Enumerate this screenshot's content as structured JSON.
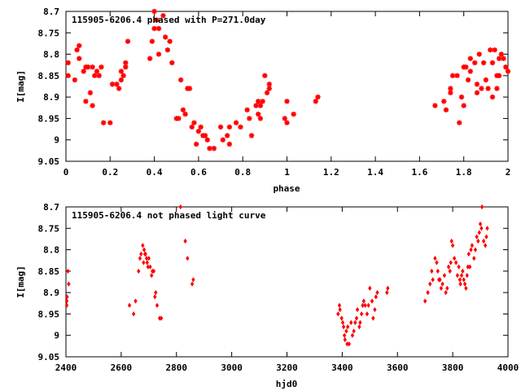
{
  "chart_data": [
    {
      "type": "scatter",
      "title": "115905-6206.4 phased with P=271.0day",
      "xlabel": "phase",
      "ylabel": "I[mag]",
      "xlim": [
        0,
        2
      ],
      "ylim": [
        9.05,
        8.7
      ],
      "y_inverted": true,
      "grid": false,
      "color": "#ff0000",
      "marker": "cross",
      "x_ticks": [
        "0",
        "0.2",
        "0.4",
        "0.6",
        "0.8",
        "1",
        "1.2",
        "1.4",
        "1.6",
        "1.8",
        "2"
      ],
      "y_ticks": [
        "8.7",
        "8.75",
        "8.8",
        "8.85",
        "8.9",
        "8.95",
        "9",
        "9.05"
      ],
      "points": [
        [
          0.01,
          8.82
        ],
        [
          0.01,
          8.85
        ],
        [
          0.04,
          8.86
        ],
        [
          0.05,
          8.79
        ],
        [
          0.06,
          8.78
        ],
        [
          0.06,
          8.81
        ],
        [
          0.08,
          8.84
        ],
        [
          0.09,
          8.83
        ],
        [
          0.09,
          8.91
        ],
        [
          0.1,
          8.83
        ],
        [
          0.11,
          8.89
        ],
        [
          0.12,
          8.92
        ],
        [
          0.12,
          8.83
        ],
        [
          0.13,
          8.85
        ],
        [
          0.14,
          8.84
        ],
        [
          0.15,
          8.85
        ],
        [
          0.16,
          8.83
        ],
        [
          0.17,
          8.96
        ],
        [
          0.2,
          8.96
        ],
        [
          0.21,
          8.87
        ],
        [
          0.23,
          8.87
        ],
        [
          0.24,
          8.88
        ],
        [
          0.25,
          8.84
        ],
        [
          0.25,
          8.86
        ],
        [
          0.26,
          8.85
        ],
        [
          0.27,
          8.82
        ],
        [
          0.27,
          8.83
        ],
        [
          0.28,
          8.77
        ],
        [
          0.38,
          8.81
        ],
        [
          0.39,
          8.77
        ],
        [
          0.4,
          8.7
        ],
        [
          0.4,
          8.74
        ],
        [
          0.41,
          8.72
        ],
        [
          0.42,
          8.74
        ],
        [
          0.42,
          8.8
        ],
        [
          0.44,
          8.71
        ],
        [
          0.45,
          8.76
        ],
        [
          0.46,
          8.79
        ],
        [
          0.47,
          8.77
        ],
        [
          0.48,
          8.82
        ],
        [
          0.5,
          8.95
        ],
        [
          0.51,
          8.95
        ],
        [
          0.52,
          8.86
        ],
        [
          0.53,
          8.93
        ],
        [
          0.54,
          8.94
        ],
        [
          0.55,
          8.88
        ],
        [
          0.56,
          8.88
        ],
        [
          0.57,
          8.97
        ],
        [
          0.58,
          8.96
        ],
        [
          0.59,
          9.01
        ],
        [
          0.6,
          8.98
        ],
        [
          0.61,
          8.97
        ],
        [
          0.62,
          8.99
        ],
        [
          0.63,
          8.99
        ],
        [
          0.64,
          9.0
        ],
        [
          0.65,
          9.02
        ],
        [
          0.67,
          9.02
        ],
        [
          0.7,
          8.97
        ],
        [
          0.71,
          9.0
        ],
        [
          0.73,
          8.99
        ],
        [
          0.74,
          8.97
        ],
        [
          0.74,
          9.01
        ],
        [
          0.77,
          8.96
        ],
        [
          0.79,
          8.97
        ],
        [
          0.82,
          8.93
        ],
        [
          0.83,
          8.95
        ],
        [
          0.84,
          8.99
        ],
        [
          0.86,
          8.92
        ],
        [
          0.87,
          8.91
        ],
        [
          0.87,
          8.94
        ],
        [
          0.88,
          8.95
        ],
        [
          0.88,
          8.92
        ],
        [
          0.89,
          8.91
        ],
        [
          0.9,
          8.85
        ],
        [
          0.91,
          8.89
        ],
        [
          0.92,
          8.87
        ],
        [
          0.92,
          8.88
        ],
        [
          0.99,
          8.95
        ],
        [
          1.0,
          8.96
        ],
        [
          1.0,
          8.91
        ],
        [
          1.03,
          8.94
        ],
        [
          1.13,
          8.91
        ],
        [
          1.14,
          8.9
        ],
        [
          1.67,
          8.92
        ],
        [
          1.71,
          8.91
        ],
        [
          1.72,
          8.93
        ],
        [
          1.74,
          8.89
        ],
        [
          1.74,
          8.88
        ],
        [
          1.75,
          8.85
        ],
        [
          1.77,
          8.85
        ],
        [
          1.78,
          8.96
        ],
        [
          1.79,
          8.9
        ],
        [
          1.8,
          8.92
        ],
        [
          1.8,
          8.83
        ],
        [
          1.81,
          8.83
        ],
        [
          1.82,
          8.86
        ],
        [
          1.83,
          8.81
        ],
        [
          1.83,
          8.84
        ],
        [
          1.85,
          8.82
        ],
        [
          1.86,
          8.89
        ],
        [
          1.86,
          8.87
        ],
        [
          1.87,
          8.8
        ],
        [
          1.88,
          8.88
        ],
        [
          1.89,
          8.82
        ],
        [
          1.9,
          8.86
        ],
        [
          1.91,
          8.88
        ],
        [
          1.92,
          8.79
        ],
        [
          1.93,
          8.9
        ],
        [
          1.93,
          8.82
        ],
        [
          1.94,
          8.79
        ],
        [
          1.95,
          8.85
        ],
        [
          1.95,
          8.88
        ],
        [
          1.96,
          8.81
        ],
        [
          1.96,
          8.85
        ],
        [
          1.97,
          8.8
        ],
        [
          1.98,
          8.81
        ],
        [
          1.99,
          8.83
        ],
        [
          2.0,
          8.84
        ]
      ]
    },
    {
      "type": "scatter",
      "title": "115905-6206.4 not phased light curve",
      "xlabel": "hjd0",
      "ylabel": "I[mag]",
      "xlim": [
        2400,
        4000
      ],
      "ylim": [
        9.05,
        8.7
      ],
      "y_inverted": true,
      "grid": false,
      "color": "#ff0000",
      "marker": "diamond",
      "x_ticks": [
        "2400",
        "2600",
        "2800",
        "3000",
        "3200",
        "3400",
        "3600",
        "3800",
        "4000"
      ],
      "y_ticks": [
        "8.7",
        "8.75",
        "8.8",
        "8.85",
        "8.9",
        "8.95",
        "9",
        "9.05"
      ],
      "points": [
        [
          2403,
          8.92
        ],
        [
          2403,
          8.93
        ],
        [
          2404,
          8.91
        ],
        [
          2407,
          8.85
        ],
        [
          2410,
          8.88
        ],
        [
          2630,
          8.93
        ],
        [
          2645,
          8.95
        ],
        [
          2652,
          8.92
        ],
        [
          2663,
          8.85
        ],
        [
          2668,
          8.82
        ],
        [
          2672,
          8.81
        ],
        [
          2678,
          8.79
        ],
        [
          2681,
          8.83
        ],
        [
          2683,
          8.8
        ],
        [
          2686,
          8.81
        ],
        [
          2688,
          8.81
        ],
        [
          2692,
          8.82
        ],
        [
          2694,
          8.83
        ],
        [
          2697,
          8.84
        ],
        [
          2700,
          8.82
        ],
        [
          2705,
          8.84
        ],
        [
          2710,
          8.86
        ],
        [
          2713,
          8.85
        ],
        [
          2718,
          8.85
        ],
        [
          2722,
          8.91
        ],
        [
          2725,
          8.9
        ],
        [
          2730,
          8.93
        ],
        [
          2739,
          8.96
        ],
        [
          2745,
          8.96
        ],
        [
          2815,
          8.7
        ],
        [
          2832,
          8.78
        ],
        [
          2840,
          8.82
        ],
        [
          2857,
          8.88
        ],
        [
          2861,
          8.87
        ],
        [
          3385,
          8.95
        ],
        [
          3390,
          8.93
        ],
        [
          3392,
          8.94
        ],
        [
          3398,
          8.96
        ],
        [
          3402,
          8.97
        ],
        [
          3405,
          8.98
        ],
        [
          3408,
          9.0
        ],
        [
          3410,
          9.01
        ],
        [
          3415,
          8.99
        ],
        [
          3418,
          9.02
        ],
        [
          3420,
          8.98
        ],
        [
          3425,
          9.02
        ],
        [
          3432,
          8.97
        ],
        [
          3437,
          9.0
        ],
        [
          3442,
          8.99
        ],
        [
          3447,
          8.97
        ],
        [
          3452,
          8.96
        ],
        [
          3455,
          8.94
        ],
        [
          3462,
          8.98
        ],
        [
          3465,
          8.97
        ],
        [
          3470,
          8.95
        ],
        [
          3474,
          8.93
        ],
        [
          3478,
          8.92
        ],
        [
          3483,
          8.93
        ],
        [
          3490,
          8.95
        ],
        [
          3495,
          8.93
        ],
        [
          3500,
          8.89
        ],
        [
          3508,
          8.92
        ],
        [
          3512,
          8.96
        ],
        [
          3518,
          8.94
        ],
        [
          3522,
          8.91
        ],
        [
          3527,
          8.9
        ],
        [
          3562,
          8.9
        ],
        [
          3565,
          8.89
        ],
        [
          3700,
          8.92
        ],
        [
          3710,
          8.9
        ],
        [
          3718,
          8.88
        ],
        [
          3724,
          8.85
        ],
        [
          3728,
          8.87
        ],
        [
          3736,
          8.82
        ],
        [
          3742,
          8.83
        ],
        [
          3746,
          8.85
        ],
        [
          3750,
          8.87
        ],
        [
          3754,
          8.87
        ],
        [
          3758,
          8.89
        ],
        [
          3763,
          8.88
        ],
        [
          3770,
          8.86
        ],
        [
          3775,
          8.9
        ],
        [
          3780,
          8.89
        ],
        [
          3785,
          8.84
        ],
        [
          3790,
          8.85
        ],
        [
          3793,
          8.83
        ],
        [
          3796,
          8.78
        ],
        [
          3800,
          8.79
        ],
        [
          3806,
          8.82
        ],
        [
          3812,
          8.83
        ],
        [
          3817,
          8.86
        ],
        [
          3822,
          8.84
        ],
        [
          3826,
          8.87
        ],
        [
          3828,
          8.88
        ],
        [
          3832,
          8.86
        ],
        [
          3836,
          8.85
        ],
        [
          3840,
          8.87
        ],
        [
          3844,
          8.88
        ],
        [
          3848,
          8.89
        ],
        [
          3852,
          8.86
        ],
        [
          3855,
          8.84
        ],
        [
          3858,
          8.81
        ],
        [
          3862,
          8.84
        ],
        [
          3866,
          8.8
        ],
        [
          3870,
          8.79
        ],
        [
          3877,
          8.82
        ],
        [
          3882,
          8.8
        ],
        [
          3887,
          8.77
        ],
        [
          3892,
          8.78
        ],
        [
          3896,
          8.76
        ],
        [
          3900,
          8.74
        ],
        [
          3904,
          8.75
        ],
        [
          3906,
          8.7
        ],
        [
          3912,
          8.78
        ],
        [
          3918,
          8.79
        ],
        [
          3922,
          8.77
        ],
        [
          3925,
          8.75
        ]
      ]
    }
  ]
}
